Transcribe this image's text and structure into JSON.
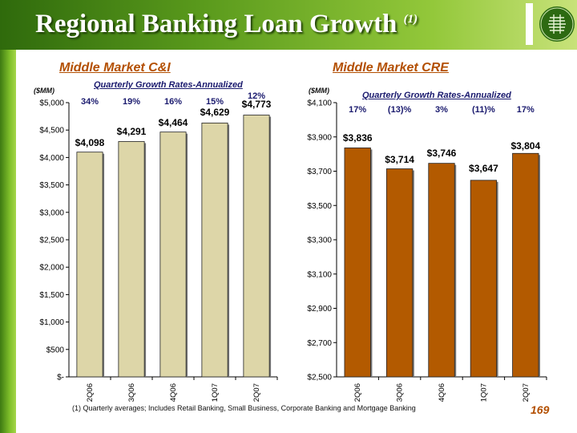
{
  "page": {
    "title": "Regional Banking Loan Growth",
    "title_note": "(1)",
    "footnote": "(1) Quarterly averages; Includes Retail Banking, Small Business, Corporate Banking and Mortgage Banking",
    "page_number": "169"
  },
  "chart_data": [
    {
      "type": "bar",
      "title": "Middle Market C&I",
      "ylabel": "($MM)",
      "subtitle": "Quarterly Growth Rates-Annualized",
      "categories": [
        "2Q06",
        "3Q06",
        "4Q06",
        "1Q07",
        "2Q07"
      ],
      "values": [
        4098,
        4291,
        4464,
        4629,
        4773
      ],
      "value_labels": [
        "$4,098",
        "$4,291",
        "$4,464",
        "$4,629",
        "$4,773"
      ],
      "growth_rates": [
        "34%",
        "19%",
        "16%",
        "15%",
        "12%"
      ],
      "ylim": [
        0,
        5000
      ],
      "yticks": [
        0,
        500,
        1000,
        1500,
        2000,
        2500,
        3000,
        3500,
        4000,
        4500,
        5000
      ],
      "ytick_labels": [
        "$-",
        "$500",
        "$1,000",
        "$1,500",
        "$2,000",
        "$2,500",
        "$3,000",
        "$3,500",
        "$4,000",
        "$4,500",
        "$5,000"
      ],
      "bar_color": "#ddd6a8",
      "grid": false,
      "legend": "none"
    },
    {
      "type": "bar",
      "title": "Middle Market CRE",
      "ylabel": "($MM)",
      "subtitle": "Quarterly Growth Rates-Annualized",
      "categories": [
        "2Q06",
        "3Q06",
        "4Q06",
        "1Q07",
        "2Q07"
      ],
      "values": [
        3836,
        3714,
        3746,
        3647,
        3804
      ],
      "value_labels": [
        "$3,836",
        "$3,714",
        "$3,746",
        "$3,647",
        "$3,804"
      ],
      "growth_rates": [
        "17%",
        "(13)%",
        "3%",
        "(11)%",
        "17%"
      ],
      "ylim": [
        2500,
        4100
      ],
      "yticks": [
        2500,
        2700,
        2900,
        3100,
        3300,
        3500,
        3700,
        3900,
        4100
      ],
      "ytick_labels": [
        "$2,500",
        "$2,700",
        "$2,900",
        "$3,100",
        "$3,300",
        "$3,500",
        "$3,700",
        "$3,900",
        "$4,100"
      ],
      "bar_color": "#b35a00",
      "grid": false,
      "legend": "none"
    }
  ]
}
